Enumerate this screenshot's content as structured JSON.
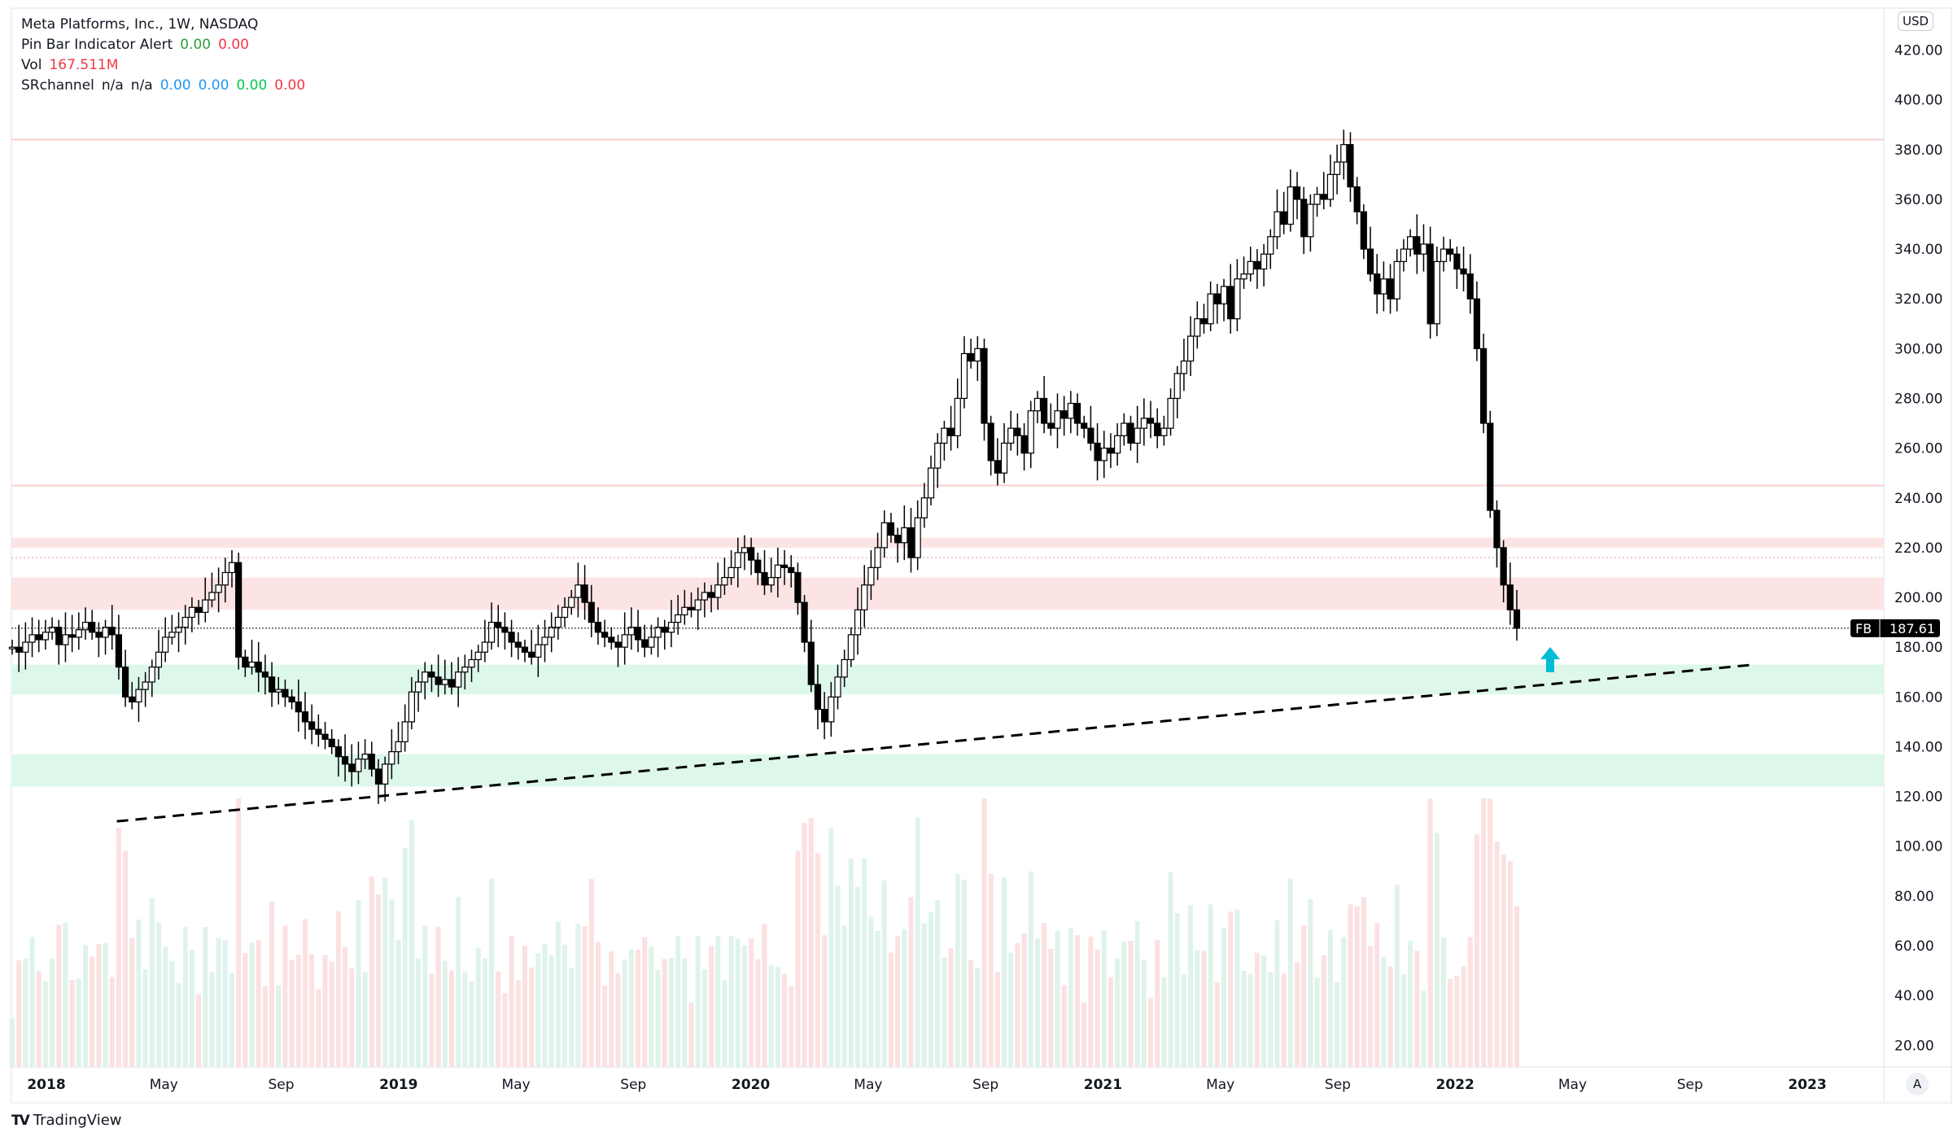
{
  "legend": {
    "title": "Meta Platforms, Inc., 1W, NASDAQ",
    "pinbar_label": "Pin Bar Indicator Alert",
    "pinbar_values": [
      "0.00",
      "0.00"
    ],
    "vol_label": "Vol",
    "vol_value": "167.511M",
    "sr_label": "SRchannel",
    "sr_na": [
      "n/a",
      "n/a"
    ],
    "sr_values": [
      "0.00",
      "0.00",
      "0.00",
      "0.00"
    ]
  },
  "currency": "USD",
  "auto_button": "A",
  "brand": "TradingView",
  "colors": {
    "up": "#ffffff",
    "down": "#000000",
    "resistance": "#f7c5c5",
    "support": "#c8f2dc",
    "arrow": "#00bcd4",
    "green": "#2e9e3e",
    "red": "#f23645",
    "blue": "#2196f3",
    "lime": "#00c853"
  },
  "chart_data": {
    "type": "candlestick",
    "title": "Meta Platforms, Inc., 1W, NASDAQ",
    "symbol": "FB",
    "last_price": "187.61",
    "ylim": [
      20,
      420
    ],
    "y_ticks": [
      "420.00",
      "400.00",
      "380.00",
      "360.00",
      "340.00",
      "320.00",
      "300.00",
      "280.00",
      "260.00",
      "240.00",
      "220.00",
      "200.00",
      "180.00",
      "160.00",
      "140.00",
      "120.00",
      "100.00",
      "80.00",
      "60.00",
      "40.00",
      "20.00"
    ],
    "x_ticks": [
      "2018",
      "May",
      "Sep",
      "2019",
      "May",
      "Sep",
      "2020",
      "May",
      "Sep",
      "2021",
      "May",
      "Sep",
      "2022",
      "May",
      "Sep",
      "2023"
    ],
    "x_range_years": [
      2017.92,
      2023.25
    ],
    "weekly_close": [
      180,
      178,
      182,
      185,
      183,
      186,
      188,
      181,
      185,
      184,
      187,
      190,
      186,
      184,
      188,
      185,
      172,
      160,
      158,
      163,
      166,
      172,
      178,
      184,
      186,
      188,
      192,
      196,
      194,
      199,
      202,
      205,
      210,
      214,
      176,
      172,
      174,
      170,
      168,
      162,
      163,
      160,
      158,
      154,
      150,
      147,
      145,
      143,
      140,
      136,
      133,
      130,
      135,
      137,
      131,
      125,
      133,
      138,
      142,
      150,
      162,
      166,
      170,
      168,
      165,
      167,
      164,
      170,
      172,
      175,
      178,
      182,
      190,
      188,
      186,
      182,
      180,
      178,
      176,
      181,
      184,
      188,
      192,
      196,
      200,
      205,
      198,
      190,
      186,
      184,
      182,
      180,
      185,
      188,
      183,
      180,
      184,
      188,
      186,
      190,
      193,
      196,
      195,
      199,
      202,
      200,
      205,
      208,
      212,
      218,
      220,
      215,
      210,
      205,
      208,
      213,
      212,
      210,
      198,
      182,
      165,
      155,
      150,
      160,
      168,
      175,
      185,
      195,
      205,
      212,
      220,
      230,
      225,
      222,
      228,
      216,
      232,
      240,
      252,
      262,
      268,
      265,
      280,
      298,
      295,
      300,
      270,
      255,
      250,
      262,
      268,
      265,
      258,
      275,
      280,
      270,
      268,
      275,
      272,
      278,
      270,
      268,
      262,
      255,
      260,
      258,
      265,
      270,
      262,
      268,
      272,
      270,
      265,
      268,
      280,
      290,
      295,
      305,
      312,
      310,
      322,
      318,
      325,
      312,
      328,
      330,
      335,
      332,
      338,
      345,
      355,
      350,
      365,
      360,
      345,
      358,
      362,
      360,
      370,
      375,
      382,
      365,
      355,
      340,
      330,
      322,
      328,
      320,
      335,
      340,
      345,
      338,
      342,
      310,
      335,
      340,
      338,
      332,
      330,
      320,
      300,
      270,
      235,
      220,
      205,
      195,
      187.61
    ],
    "resistance_zones": [
      [
        220,
        224
      ],
      [
        195,
        208
      ]
    ],
    "support_zones": [
      [
        161,
        173
      ],
      [
        124,
        137
      ]
    ],
    "resistance_lines": [
      384,
      245
    ],
    "dotted_line": 216,
    "trendline": {
      "from": [
        2018.2,
        110
      ],
      "to": [
        2022.85,
        173
      ]
    }
  }
}
